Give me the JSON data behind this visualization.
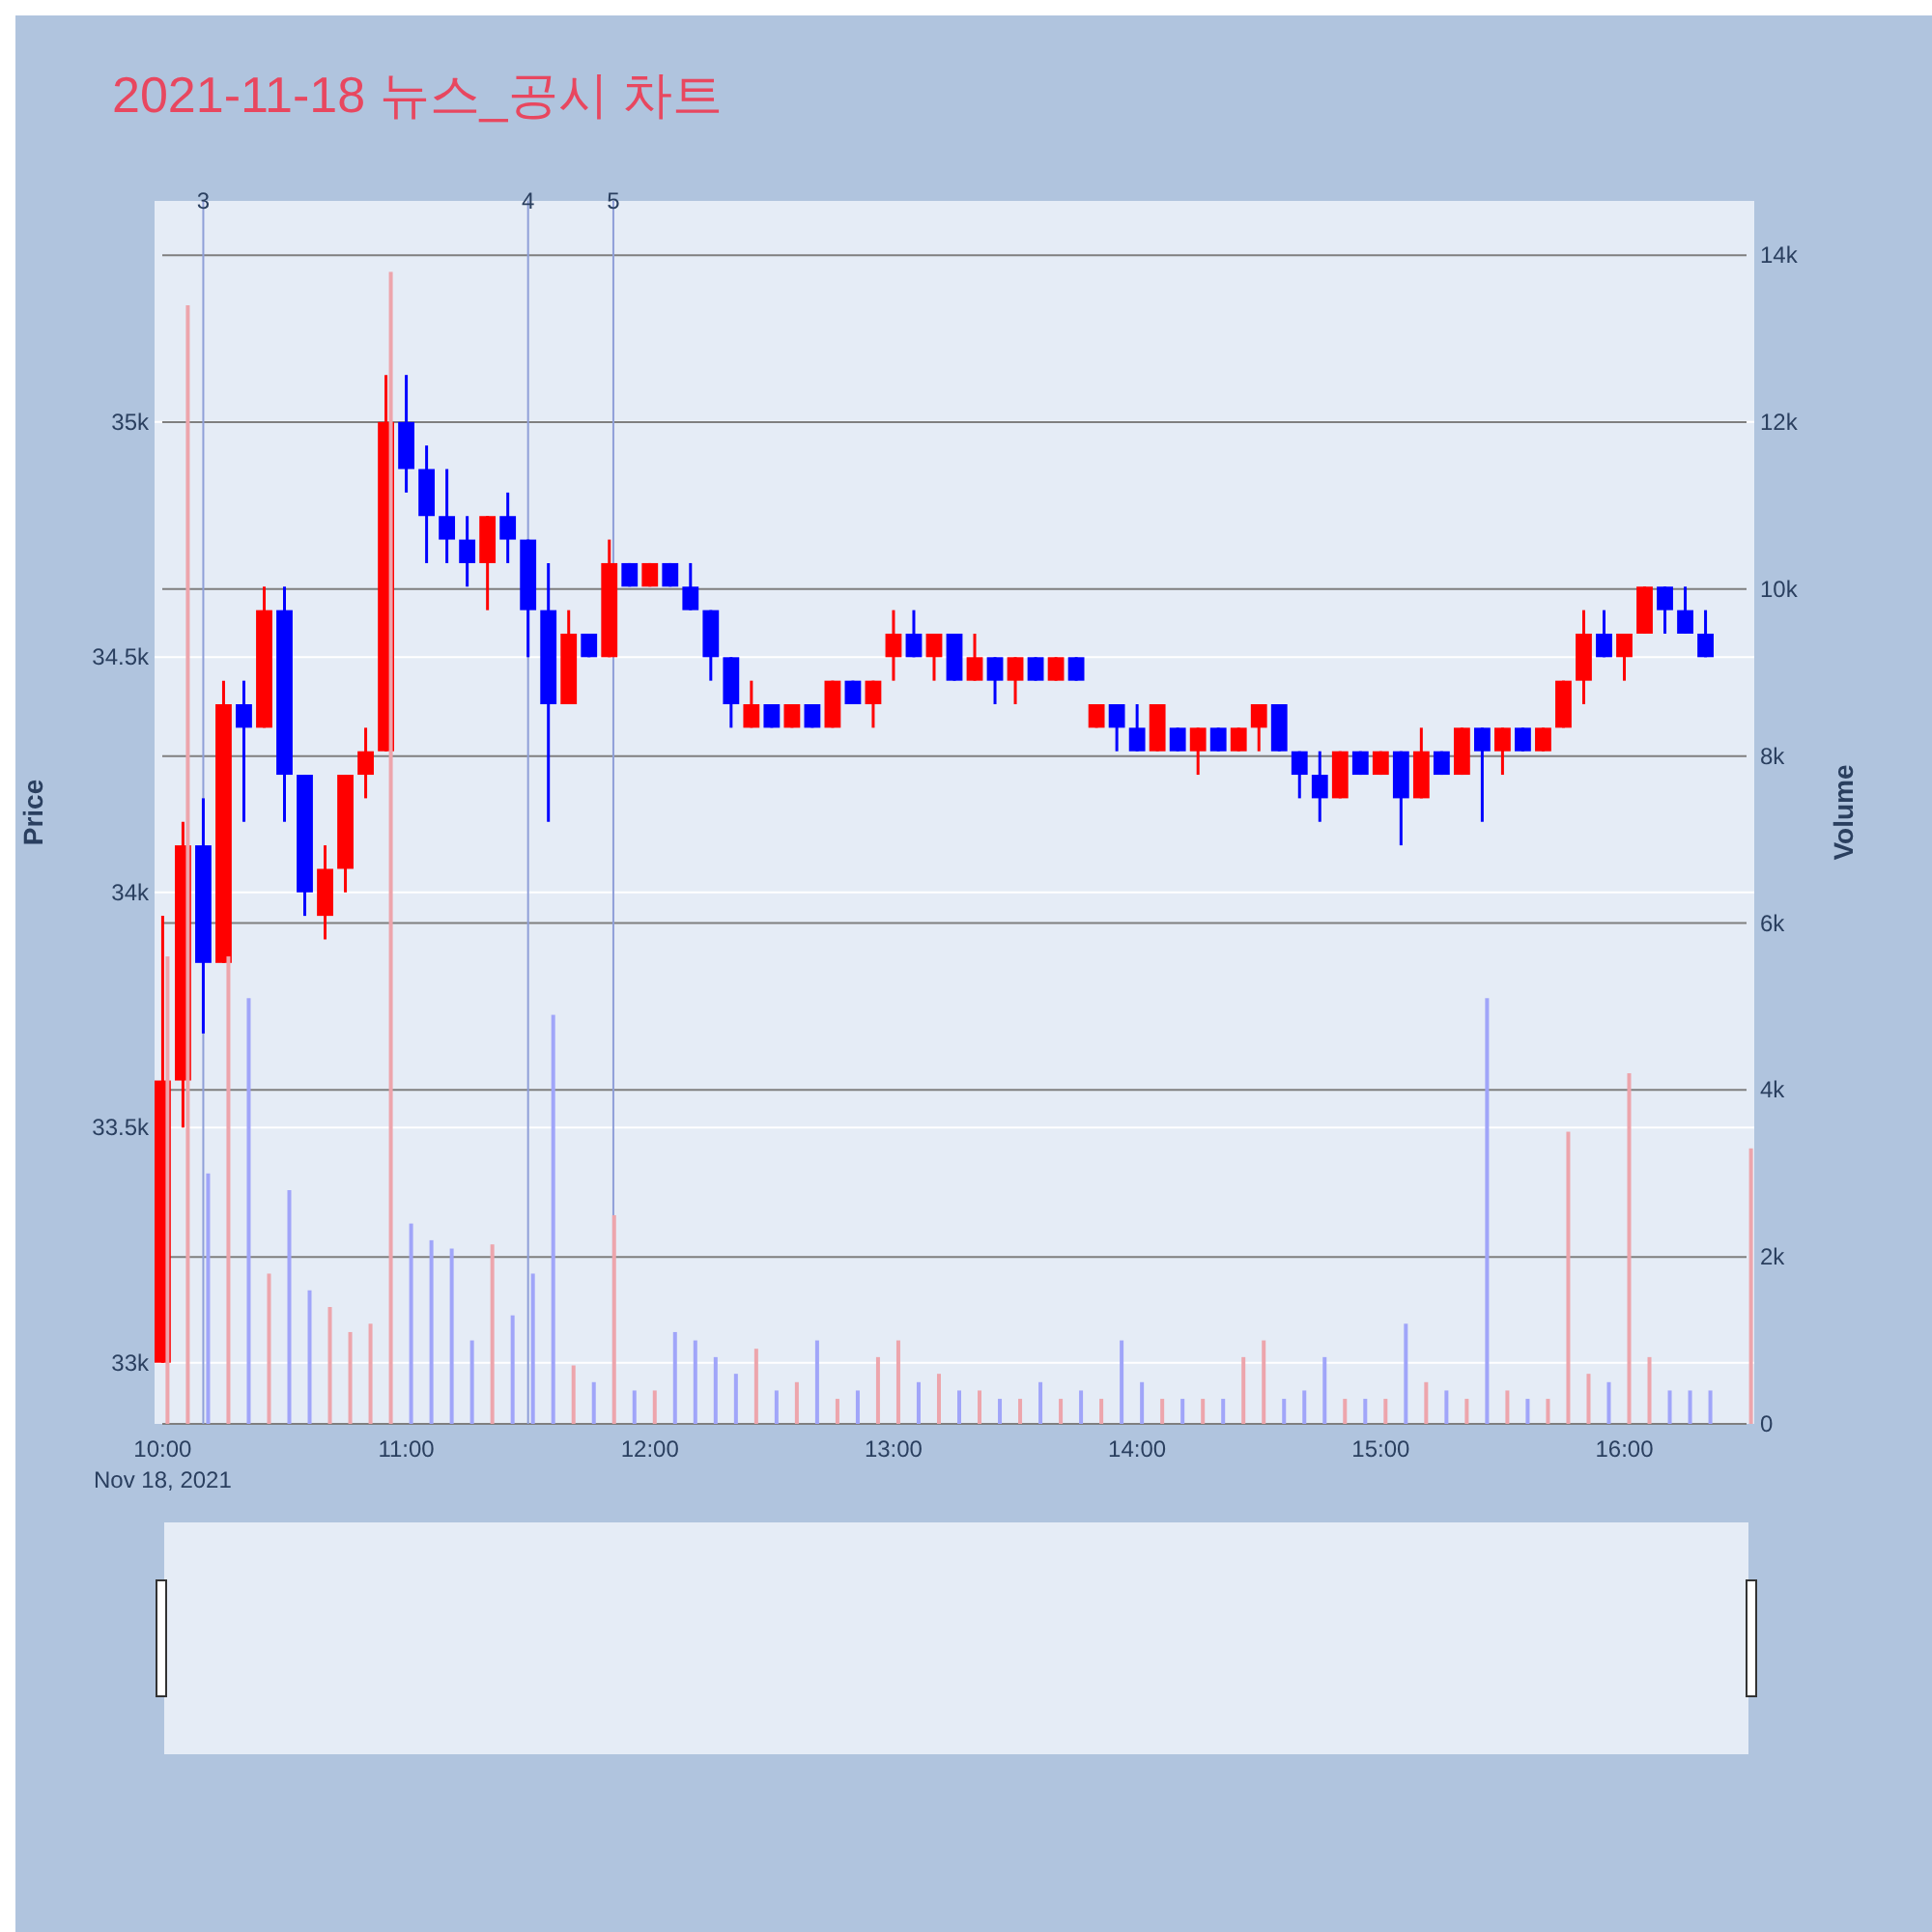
{
  "chart_data": {
    "type": "candlestick",
    "title": "2021-11-18 뉴스_공시 차트",
    "ylabel": "Price",
    "y2label": "Volume",
    "x": [
      "2021-11-18T10:00",
      "2021-11-18T10:05",
      "2021-11-18T10:10",
      "2021-11-18T10:15",
      "2021-11-18T10:20",
      "2021-11-18T10:25",
      "2021-11-18T10:30",
      "2021-11-18T10:35",
      "2021-11-18T10:40",
      "2021-11-18T10:45",
      "2021-11-18T10:50",
      "2021-11-18T10:55",
      "2021-11-18T11:00",
      "2021-11-18T11:05",
      "2021-11-18T11:10",
      "2021-11-18T11:15",
      "2021-11-18T11:20",
      "2021-11-18T11:25",
      "2021-11-18T11:30",
      "2021-11-18T11:35",
      "2021-11-18T11:40",
      "2021-11-18T11:45",
      "2021-11-18T11:50",
      "2021-11-18T11:55",
      "2021-11-18T12:00",
      "2021-11-18T12:05",
      "2021-11-18T12:10",
      "2021-11-18T12:15",
      "2021-11-18T12:20",
      "2021-11-18T12:25",
      "2021-11-18T12:30",
      "2021-11-18T12:35",
      "2021-11-18T12:40",
      "2021-11-18T12:45",
      "2021-11-18T12:50",
      "2021-11-18T12:55",
      "2021-11-18T13:00",
      "2021-11-18T13:05",
      "2021-11-18T13:10",
      "2021-11-18T13:15",
      "2021-11-18T13:20",
      "2021-11-18T13:25",
      "2021-11-18T13:30",
      "2021-11-18T13:35",
      "2021-11-18T13:40",
      "2021-11-18T13:45",
      "2021-11-18T13:50",
      "2021-11-18T13:55",
      "2021-11-18T14:00",
      "2021-11-18T14:05",
      "2021-11-18T14:10",
      "2021-11-18T14:15",
      "2021-11-18T14:20",
      "2021-11-18T14:25",
      "2021-11-18T14:30",
      "2021-11-18T14:35",
      "2021-11-18T14:40",
      "2021-11-18T14:45",
      "2021-11-18T14:50",
      "2021-11-18T14:55",
      "2021-11-18T15:00",
      "2021-11-18T15:05",
      "2021-11-18T15:10",
      "2021-11-18T15:15",
      "2021-11-18T15:20",
      "2021-11-18T15:25",
      "2021-11-18T15:30",
      "2021-11-18T15:35",
      "2021-11-18T15:40",
      "2021-11-18T15:45",
      "2021-11-18T15:50",
      "2021-11-18T15:55",
      "2021-11-18T16:00",
      "2021-11-18T16:05",
      "2021-11-18T16:10",
      "2021-11-18T16:15",
      "2021-11-18T16:20"
    ],
    "ohlc": [
      [
        33000,
        33950,
        33000,
        33600
      ],
      [
        33600,
        34150,
        33500,
        34100
      ],
      [
        34100,
        34200,
        33700,
        33850
      ],
      [
        33850,
        34450,
        33850,
        34400
      ],
      [
        34400,
        34450,
        34150,
        34350
      ],
      [
        34350,
        34650,
        34350,
        34600
      ],
      [
        34600,
        34650,
        34150,
        34250
      ],
      [
        34250,
        34250,
        33950,
        34000
      ],
      [
        33950,
        34100,
        33900,
        34050
      ],
      [
        34050,
        34250,
        34000,
        34250
      ],
      [
        34250,
        34350,
        34200,
        34300
      ],
      [
        34300,
        35100,
        34300,
        35000
      ],
      [
        35000,
        35100,
        34850,
        34900
      ],
      [
        34900,
        34950,
        34700,
        34800
      ],
      [
        34800,
        34900,
        34700,
        34750
      ],
      [
        34750,
        34800,
        34650,
        34700
      ],
      [
        34700,
        34800,
        34600,
        34800
      ],
      [
        34800,
        34850,
        34700,
        34750
      ],
      [
        34750,
        34750,
        34500,
        34600
      ],
      [
        34600,
        34700,
        34150,
        34400
      ],
      [
        34400,
        34600,
        34400,
        34550
      ],
      [
        34550,
        34550,
        34500,
        34500
      ],
      [
        34500,
        34750,
        34500,
        34700
      ],
      [
        34700,
        34700,
        34650,
        34650
      ],
      [
        34650,
        34700,
        34650,
        34700
      ],
      [
        34700,
        34700,
        34650,
        34650
      ],
      [
        34650,
        34700,
        34600,
        34600
      ],
      [
        34600,
        34600,
        34450,
        34500
      ],
      [
        34500,
        34500,
        34350,
        34400
      ],
      [
        34350,
        34450,
        34350,
        34400
      ],
      [
        34400,
        34400,
        34350,
        34350
      ],
      [
        34350,
        34400,
        34350,
        34400
      ],
      [
        34400,
        34400,
        34350,
        34350
      ],
      [
        34350,
        34450,
        34350,
        34450
      ],
      [
        34450,
        34450,
        34400,
        34400
      ],
      [
        34400,
        34450,
        34350,
        34450
      ],
      [
        34500,
        34600,
        34450,
        34550
      ],
      [
        34550,
        34600,
        34500,
        34500
      ],
      [
        34500,
        34550,
        34450,
        34550
      ],
      [
        34550,
        34550,
        34450,
        34450
      ],
      [
        34450,
        34550,
        34450,
        34500
      ],
      [
        34500,
        34500,
        34400,
        34450
      ],
      [
        34450,
        34500,
        34400,
        34500
      ],
      [
        34500,
        34500,
        34450,
        34450
      ],
      [
        34450,
        34500,
        34450,
        34500
      ],
      [
        34500,
        34500,
        34450,
        34450
      ],
      [
        34350,
        34400,
        34350,
        34400
      ],
      [
        34400,
        34400,
        34300,
        34350
      ],
      [
        34350,
        34400,
        34300,
        34300
      ],
      [
        34300,
        34400,
        34300,
        34400
      ],
      [
        34350,
        34350,
        34300,
        34300
      ],
      [
        34300,
        34350,
        34250,
        34350
      ],
      [
        34350,
        34350,
        34300,
        34300
      ],
      [
        34300,
        34350,
        34300,
        34350
      ],
      [
        34350,
        34400,
        34300,
        34400
      ],
      [
        34400,
        34400,
        34300,
        34300
      ],
      [
        34300,
        34300,
        34200,
        34250
      ],
      [
        34250,
        34300,
        34150,
        34200
      ],
      [
        34200,
        34300,
        34200,
        34300
      ],
      [
        34300,
        34300,
        34250,
        34250
      ],
      [
        34250,
        34300,
        34250,
        34300
      ],
      [
        34300,
        34300,
        34100,
        34200
      ],
      [
        34200,
        34350,
        34200,
        34300
      ],
      [
        34300,
        34300,
        34250,
        34250
      ],
      [
        34250,
        34350,
        34250,
        34350
      ],
      [
        34350,
        34350,
        34150,
        34300
      ],
      [
        34300,
        34350,
        34250,
        34350
      ],
      [
        34350,
        34350,
        34300,
        34300
      ],
      [
        34300,
        34350,
        34300,
        34350
      ],
      [
        34350,
        34450,
        34350,
        34450
      ],
      [
        34450,
        34600,
        34400,
        34550
      ],
      [
        34550,
        34600,
        34500,
        34500
      ],
      [
        34500,
        34550,
        34450,
        34550
      ],
      [
        34550,
        34650,
        34550,
        34650
      ],
      [
        34650,
        34650,
        34550,
        34600
      ],
      [
        34600,
        34650,
        34550,
        34550
      ],
      [
        34550,
        34600,
        34500,
        34500
      ]
    ],
    "colors": [
      "#ff0000",
      "#ff0000",
      "#0000ff",
      "#ff0000",
      "#0000ff",
      "#ff0000",
      "#0000ff",
      "#0000ff",
      "#ff0000",
      "#ff0000",
      "#ff0000",
      "#ff0000",
      "#0000ff",
      "#0000ff",
      "#0000ff",
      "#0000ff",
      "#ff0000",
      "#0000ff",
      "#0000ff",
      "#0000ff",
      "#ff0000",
      "#0000ff",
      "#ff0000",
      "#0000ff",
      "#ff0000",
      "#0000ff",
      "#0000ff",
      "#0000ff",
      "#0000ff",
      "#ff0000",
      "#0000ff",
      "#ff0000",
      "#0000ff",
      "#ff0000",
      "#0000ff",
      "#ff0000",
      "#ff0000",
      "#0000ff",
      "#ff0000",
      "#0000ff",
      "#ff0000",
      "#0000ff",
      "#ff0000",
      "#0000ff",
      "#ff0000",
      "#0000ff",
      "#ff0000",
      "#0000ff",
      "#0000ff",
      "#ff0000",
      "#0000ff",
      "#ff0000",
      "#0000ff",
      "#ff0000",
      "#ff0000",
      "#0000ff",
      "#0000ff",
      "#0000ff",
      "#ff0000",
      "#0000ff",
      "#ff0000",
      "#0000ff",
      "#ff0000",
      "#0000ff",
      "#ff0000",
      "#0000ff",
      "#ff0000",
      "#0000ff",
      "#ff0000",
      "#ff0000",
      "#ff0000",
      "#0000ff",
      "#ff0000",
      "#ff0000",
      "#0000ff",
      "#0000ff",
      "#0000ff"
    ],
    "series": [
      {
        "type": "bar",
        "axis": "y2",
        "x": [
          "2021-11-18T10:00",
          "2021-11-18T10:05",
          "2021-11-18T10:10",
          "2021-11-18T10:15",
          "2021-11-18T10:20",
          "2021-11-18T10:25",
          "2021-11-18T10:30",
          "2021-11-18T10:35",
          "2021-11-18T10:40",
          "2021-11-18T10:45",
          "2021-11-18T10:50",
          "2021-11-18T10:55",
          "2021-11-18T11:00",
          "2021-11-18T11:05",
          "2021-11-18T11:10",
          "2021-11-18T11:15",
          "2021-11-18T11:20",
          "2021-11-18T11:25",
          "2021-11-18T11:30",
          "2021-11-18T11:35",
          "2021-11-18T11:40",
          "2021-11-18T11:45",
          "2021-11-18T11:50",
          "2021-11-18T11:55",
          "2021-11-18T12:00",
          "2021-11-18T12:05",
          "2021-11-18T12:10",
          "2021-11-18T12:15",
          "2021-11-18T12:20",
          "2021-11-18T12:25",
          "2021-11-18T12:30",
          "2021-11-18T12:35",
          "2021-11-18T12:40",
          "2021-11-18T12:45",
          "2021-11-18T12:50",
          "2021-11-18T12:55",
          "2021-11-18T13:00",
          "2021-11-18T13:05",
          "2021-11-18T13:10",
          "2021-11-18T13:15",
          "2021-11-18T13:20",
          "2021-11-18T13:25",
          "2021-11-18T13:30",
          "2021-11-18T13:35",
          "2021-11-18T13:40",
          "2021-11-18T13:45",
          "2021-11-18T13:50",
          "2021-11-18T13:55",
          "2021-11-18T14:00",
          "2021-11-18T14:05",
          "2021-11-18T14:10",
          "2021-11-18T14:15",
          "2021-11-18T14:20",
          "2021-11-18T14:25",
          "2021-11-18T14:30",
          "2021-11-18T14:35",
          "2021-11-18T14:40",
          "2021-11-18T14:45",
          "2021-11-18T14:50",
          "2021-11-18T14:55",
          "2021-11-18T15:00",
          "2021-11-18T15:05",
          "2021-11-18T15:10",
          "2021-11-18T15:15",
          "2021-11-18T15:20",
          "2021-11-18T15:25",
          "2021-11-18T15:30",
          "2021-11-18T15:35",
          "2021-11-18T15:40",
          "2021-11-18T15:45",
          "2021-11-18T15:50",
          "2021-11-18T15:55",
          "2021-11-18T16:00",
          "2021-11-18T16:05",
          "2021-11-18T16:10",
          "2021-11-18T16:15",
          "2021-11-18T16:20",
          "2021-11-18T16:30"
        ],
        "values": [
          5600,
          13400,
          3000,
          5600,
          5100,
          1800,
          2800,
          1600,
          1400,
          1100,
          1200,
          13800,
          2400,
          2200,
          2100,
          1000,
          2150,
          1300,
          1800,
          4900,
          700,
          500,
          2500,
          400,
          400,
          1100,
          1000,
          800,
          600,
          900,
          400,
          500,
          1000,
          300,
          400,
          800,
          1000,
          500,
          600,
          400,
          400,
          300,
          300,
          500,
          300,
          400,
          300,
          1000,
          500,
          300,
          300,
          300,
          300,
          800,
          1000,
          300,
          400,
          800,
          300,
          300,
          300,
          1200,
          500,
          400,
          300,
          5100,
          400,
          300,
          300,
          3500,
          600,
          500,
          4200,
          800,
          400,
          400,
          400,
          3300
        ],
        "colors": [
          "#eda5ac",
          "#eda5ac",
          "#a0a5f9",
          "#eda5ac",
          "#a0a5f9",
          "#eda5ac",
          "#a0a5f9",
          "#a0a5f9",
          "#eda5ac",
          "#eda5ac",
          "#eda5ac",
          "#eda5ac",
          "#a0a5f9",
          "#a0a5f9",
          "#a0a5f9",
          "#a0a5f9",
          "#eda5ac",
          "#a0a5f9",
          "#a0a5f9",
          "#a0a5f9",
          "#eda5ac",
          "#a0a5f9",
          "#eda5ac",
          "#a0a5f9",
          "#eda5ac",
          "#a0a5f9",
          "#a0a5f9",
          "#a0a5f9",
          "#a0a5f9",
          "#eda5ac",
          "#a0a5f9",
          "#eda5ac",
          "#a0a5f9",
          "#eda5ac",
          "#a0a5f9",
          "#eda5ac",
          "#eda5ac",
          "#a0a5f9",
          "#eda5ac",
          "#a0a5f9",
          "#eda5ac",
          "#a0a5f9",
          "#eda5ac",
          "#a0a5f9",
          "#eda5ac",
          "#a0a5f9",
          "#eda5ac",
          "#a0a5f9",
          "#a0a5f9",
          "#eda5ac",
          "#a0a5f9",
          "#eda5ac",
          "#a0a5f9",
          "#eda5ac",
          "#eda5ac",
          "#a0a5f9",
          "#a0a5f9",
          "#a0a5f9",
          "#eda5ac",
          "#a0a5f9",
          "#eda5ac",
          "#a0a5f9",
          "#eda5ac",
          "#a0a5f9",
          "#eda5ac",
          "#a0a5f9",
          "#eda5ac",
          "#a0a5f9",
          "#eda5ac",
          "#eda5ac",
          "#eda5ac",
          "#a0a5f9",
          "#eda5ac",
          "#eda5ac",
          "#a0a5f9",
          "#a0a5f9",
          "#a0a5f9",
          "#eda5ac"
        ]
      }
    ],
    "xlim": [
      "2021-11-18T09:58",
      "2021-11-18T16:32"
    ],
    "xticks": [
      {
        "value": "2021-11-18T10:00",
        "label": "10:00\nNov 18, 2021"
      },
      {
        "value": "2021-11-18T11:00",
        "label": "11:00"
      },
      {
        "value": "2021-11-18T12:00",
        "label": "12:00"
      },
      {
        "value": "2021-11-18T13:00",
        "label": "13:00"
      },
      {
        "value": "2021-11-18T14:00",
        "label": "14:00"
      },
      {
        "value": "2021-11-18T15:00",
        "label": "15:00"
      },
      {
        "value": "2021-11-18T16:00",
        "label": "16:00"
      }
    ],
    "ylim": [
      32870,
      35470
    ],
    "yticks": [
      {
        "value": 33000,
        "label": "33k"
      },
      {
        "value": 33500,
        "label": "33.5k"
      },
      {
        "value": 34000,
        "label": "34k"
      },
      {
        "value": 34500,
        "label": "34.5k"
      },
      {
        "value": 35000,
        "label": "35k"
      }
    ],
    "y2lim": [
      0,
      14650
    ],
    "y2ticks": [
      0,
      {
        "value": 2000,
        "label": "2k"
      },
      {
        "value": 4000,
        "label": "4k"
      },
      {
        "value": 6000,
        "label": "6k"
      },
      {
        "value": 8000,
        "label": "8k"
      },
      {
        "value": 10000,
        "label": "10k"
      },
      {
        "value": 12000,
        "label": "12k"
      },
      {
        "value": 14000,
        "label": "14k"
      }
    ],
    "grid": true,
    "ref_lines": [
      {
        "axis": "x",
        "value": "2021-11-18T10:10",
        "label": "3",
        "color": "#8f9fd8"
      },
      {
        "axis": "x",
        "value": "2021-11-18T11:30",
        "label": "4",
        "color": "#8f9fd8"
      },
      {
        "axis": "x",
        "value": "2021-11-18T11:51",
        "label": "5",
        "color": "#8f9fd8"
      }
    ]
  }
}
